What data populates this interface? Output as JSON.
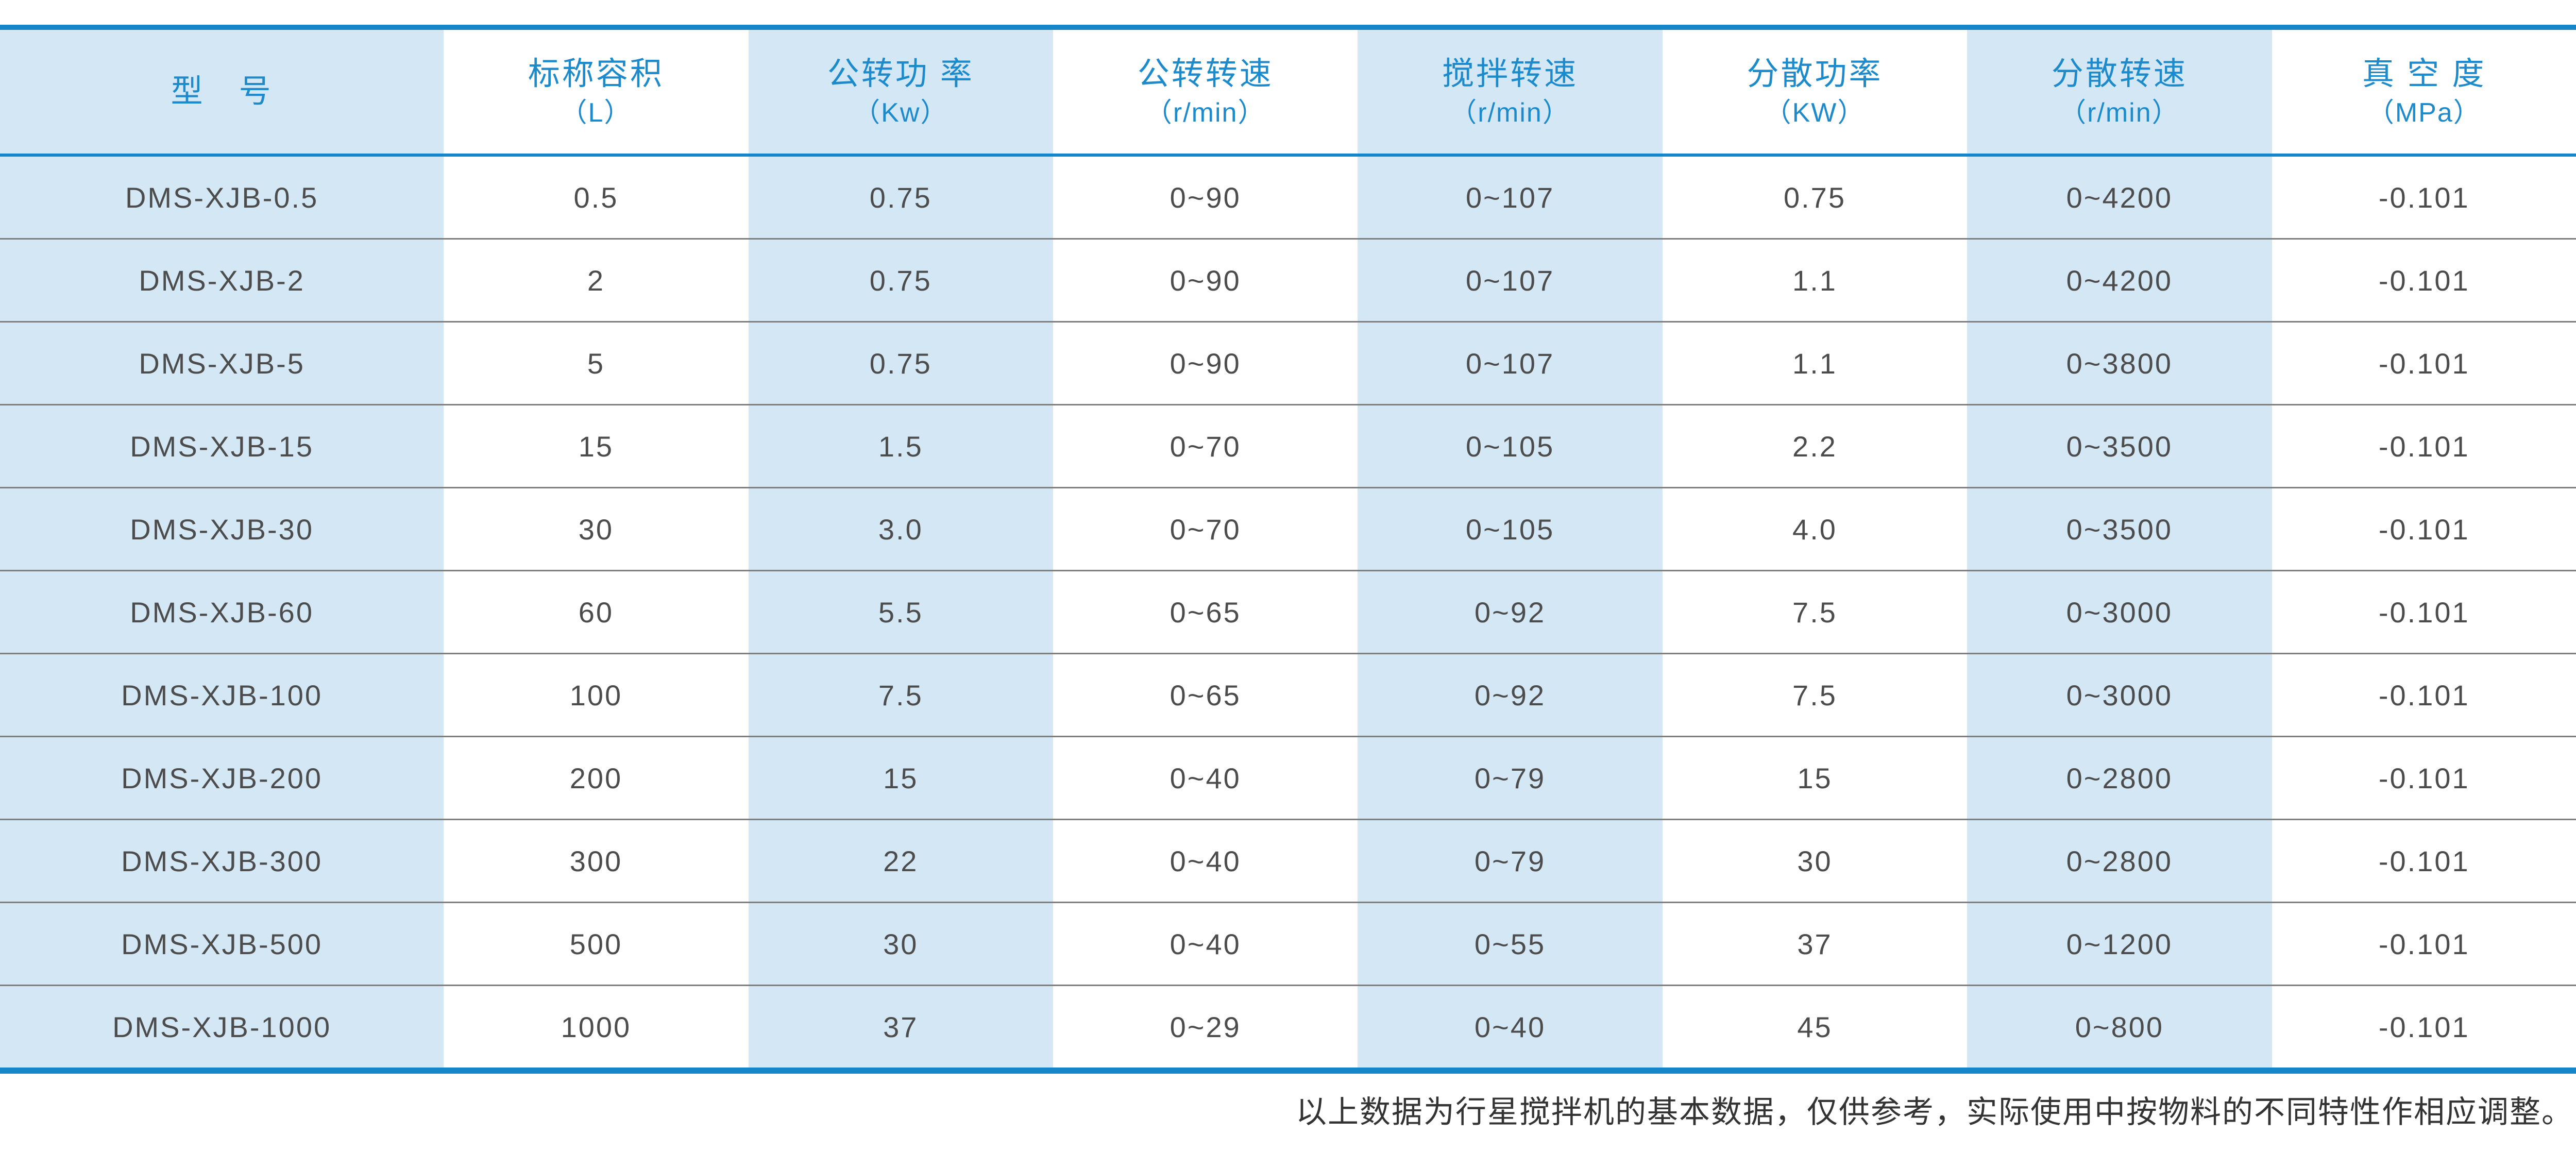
{
  "colors": {
    "accent_blue_line": "#1486c9",
    "header_text_blue": "#1d8bcb",
    "stripe_light_blue": "#d4e7f5",
    "row_separator_gray": "#7e7e7e",
    "cell_text_gray": "#4c4c4c"
  },
  "table": {
    "columns": [
      {
        "line1": "型　号",
        "line2": ""
      },
      {
        "line1": "标称容积",
        "line2": "（L）"
      },
      {
        "line1": "公转功 率",
        "line2": "（Kw）"
      },
      {
        "line1": "公转转速",
        "line2": "（r/min）"
      },
      {
        "line1": "搅拌转速",
        "line2": "（r/min）"
      },
      {
        "line1": "分散功率",
        "line2": "（KW）"
      },
      {
        "line1": "分散转速",
        "line2": "（r/min）"
      },
      {
        "line1": "真 空 度",
        "line2": "（MPa）"
      }
    ],
    "rows": [
      [
        "DMS-XJB-0.5",
        "0.5",
        "0.75",
        "0~90",
        "0~107",
        "0.75",
        "0~4200",
        "-0.101"
      ],
      [
        "DMS-XJB-2",
        "2",
        "0.75",
        "0~90",
        "0~107",
        "1.1",
        "0~4200",
        "-0.101"
      ],
      [
        "DMS-XJB-5",
        "5",
        "0.75",
        "0~90",
        "0~107",
        "1.1",
        "0~3800",
        "-0.101"
      ],
      [
        "DMS-XJB-15",
        "15",
        "1.5",
        "0~70",
        "0~105",
        "2.2",
        "0~3500",
        "-0.101"
      ],
      [
        "DMS-XJB-30",
        "30",
        "3.0",
        "0~70",
        "0~105",
        "4.0",
        "0~3500",
        "-0.101"
      ],
      [
        "DMS-XJB-60",
        "60",
        "5.5",
        "0~65",
        "0~92",
        "7.5",
        "0~3000",
        "-0.101"
      ],
      [
        "DMS-XJB-100",
        "100",
        "7.5",
        "0~65",
        "0~92",
        "7.5",
        "0~3000",
        "-0.101"
      ],
      [
        "DMS-XJB-200",
        "200",
        "15",
        "0~40",
        "0~79",
        "15",
        "0~2800",
        "-0.101"
      ],
      [
        "DMS-XJB-300",
        "300",
        "22",
        "0~40",
        "0~79",
        "30",
        "0~2800",
        "-0.101"
      ],
      [
        "DMS-XJB-500",
        "500",
        "30",
        "0~40",
        "0~55",
        "37",
        "0~1200",
        "-0.101"
      ],
      [
        "DMS-XJB-1000",
        "1000",
        "37",
        "0~29",
        "0~40",
        "45",
        "0~800",
        "-0.101"
      ]
    ]
  },
  "footer": {
    "note": "以上数据为行星搅拌机的基本数据，仅供参考，实际使用中按物料的不同特性作相应调整。"
  }
}
